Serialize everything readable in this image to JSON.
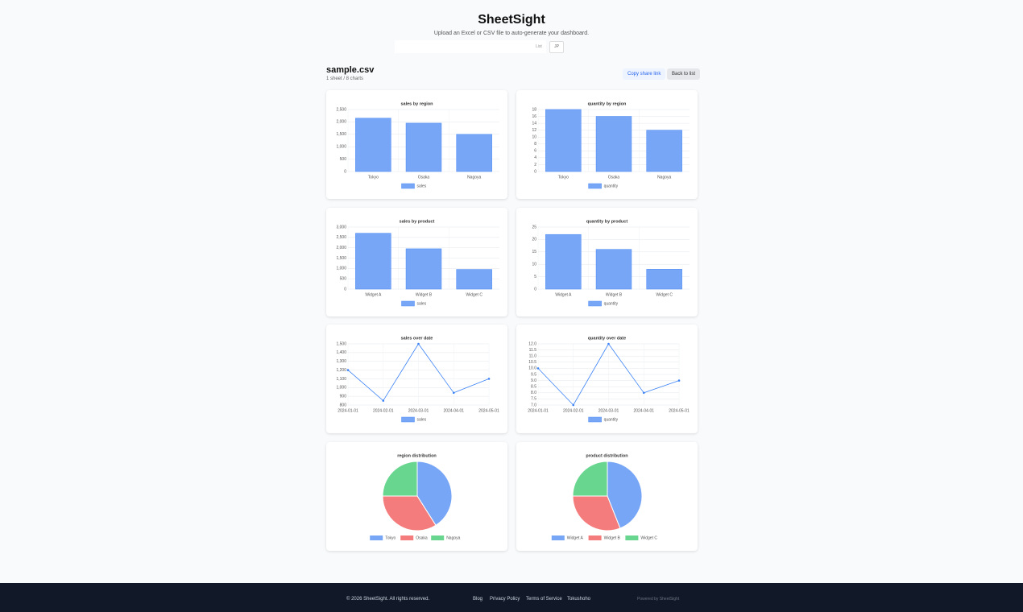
{
  "header": {
    "title": "SheetSight",
    "subtitle": "Upload an Excel or CSV file to auto-generate your dashboard.",
    "list_link": "List",
    "lang": "JP"
  },
  "file": {
    "name": "sample.csv",
    "meta": "1 sheet / 8 charts",
    "share": "Copy share link",
    "back": "Back to list"
  },
  "chart_data": [
    {
      "type": "bar",
      "title": "sales by region",
      "categories": [
        "Tokyo",
        "Osaka",
        "Nagoya"
      ],
      "series": [
        {
          "name": "sales",
          "color": "#78a6f7",
          "values": [
            2150,
            1950,
            1500
          ]
        }
      ],
      "ylim": [
        0,
        2500
      ],
      "yticks": [
        0,
        500,
        {
          "value": 1000,
          "label": "1,000"
        },
        {
          "value": 1500,
          "label": "1,500"
        },
        {
          "value": 2000,
          "label": "2,000"
        },
        {
          "value": 2500,
          "label": "2,500"
        }
      ],
      "grid": true
    },
    {
      "type": "bar",
      "title": "quantity by region",
      "categories": [
        "Tokyo",
        "Osaka",
        "Nagoya"
      ],
      "series": [
        {
          "name": "quantity",
          "color": "#78a6f7",
          "values": [
            18,
            16,
            12
          ]
        }
      ],
      "ylim": [
        0,
        18
      ],
      "yticks": [
        0,
        2,
        4,
        6,
        8,
        10,
        12,
        14,
        16,
        18
      ],
      "grid": true
    },
    {
      "type": "bar",
      "title": "sales by product",
      "categories": [
        "Widget A",
        "Widget B",
        "Widget C"
      ],
      "series": [
        {
          "name": "sales",
          "color": "#78a6f7",
          "values": [
            2700,
            1950,
            950
          ]
        }
      ],
      "ylim": [
        0,
        3000
      ],
      "yticks": [
        0,
        500,
        {
          "value": 1000,
          "label": "1,000"
        },
        {
          "value": 1500,
          "label": "1,500"
        },
        {
          "value": 2000,
          "label": "2,000"
        },
        {
          "value": 2500,
          "label": "2,500"
        },
        {
          "value": 3000,
          "label": "3,000"
        }
      ],
      "grid": true
    },
    {
      "type": "bar",
      "title": "quantity by product",
      "categories": [
        "Widget A",
        "Widget B",
        "Widget C"
      ],
      "series": [
        {
          "name": "quantity",
          "color": "#78a6f7",
          "values": [
            22,
            16,
            8
          ]
        }
      ],
      "ylim": [
        0,
        25
      ],
      "yticks": [
        0,
        5,
        10,
        15,
        20,
        25
      ],
      "grid": true
    },
    {
      "type": "line",
      "title": "sales over date",
      "categories": [
        "2024-01-01",
        "2024-02-01",
        "2024-03-01",
        "2024-04-01",
        "2024-05-01"
      ],
      "series": [
        {
          "name": "sales",
          "color": "#3b82f6",
          "values": [
            1200,
            850,
            1500,
            940,
            1100
          ]
        }
      ],
      "ylim": [
        800,
        1500
      ],
      "yticks": [
        800,
        900,
        {
          "value": 1000,
          "label": "1,000"
        },
        {
          "value": 1100,
          "label": "1,100"
        },
        {
          "value": 1200,
          "label": "1,200"
        },
        {
          "value": 1300,
          "label": "1,300"
        },
        {
          "value": 1400,
          "label": "1,400"
        },
        {
          "value": 1500,
          "label": "1,500"
        }
      ],
      "grid": true
    },
    {
      "type": "line",
      "title": "quantity over date",
      "categories": [
        "2024-01-01",
        "2024-02-01",
        "2024-03-01",
        "2024-04-01",
        "2024-05-01"
      ],
      "series": [
        {
          "name": "quantity",
          "color": "#3b82f6",
          "values": [
            10,
            7,
            12,
            8,
            9
          ]
        }
      ],
      "ylim": [
        7,
        12
      ],
      "yticks": [
        {
          "value": 7,
          "label": "7.0"
        },
        7.5,
        {
          "value": 8,
          "label": "8.0"
        },
        8.5,
        {
          "value": 9,
          "label": "9.0"
        },
        9.5,
        {
          "value": 10,
          "label": "10.0"
        },
        10.5,
        {
          "value": 11,
          "label": "11.0"
        },
        11.5,
        {
          "value": 12,
          "label": "12.0"
        }
      ],
      "grid": true
    },
    {
      "type": "pie",
      "title": "region distribution",
      "categories": [
        "Tokyo",
        "Osaka",
        "Nagoya"
      ],
      "values": [
        41,
        34,
        25
      ],
      "colors": [
        "#78a6f7",
        "#f47c7c",
        "#68d68e"
      ]
    },
    {
      "type": "pie",
      "title": "product distribution",
      "categories": [
        "Widget A",
        "Widget B",
        "Widget C"
      ],
      "values": [
        44,
        31,
        25
      ],
      "colors": [
        "#78a6f7",
        "#f47c7c",
        "#68d68e"
      ]
    }
  ],
  "footer": {
    "copyright": "© 2026 SheetSight. All rights reserved.",
    "links": [
      "Blog",
      "Privacy Policy",
      "Terms of Service",
      "Tokushoho"
    ],
    "powered": "Powered by SheetSight"
  }
}
